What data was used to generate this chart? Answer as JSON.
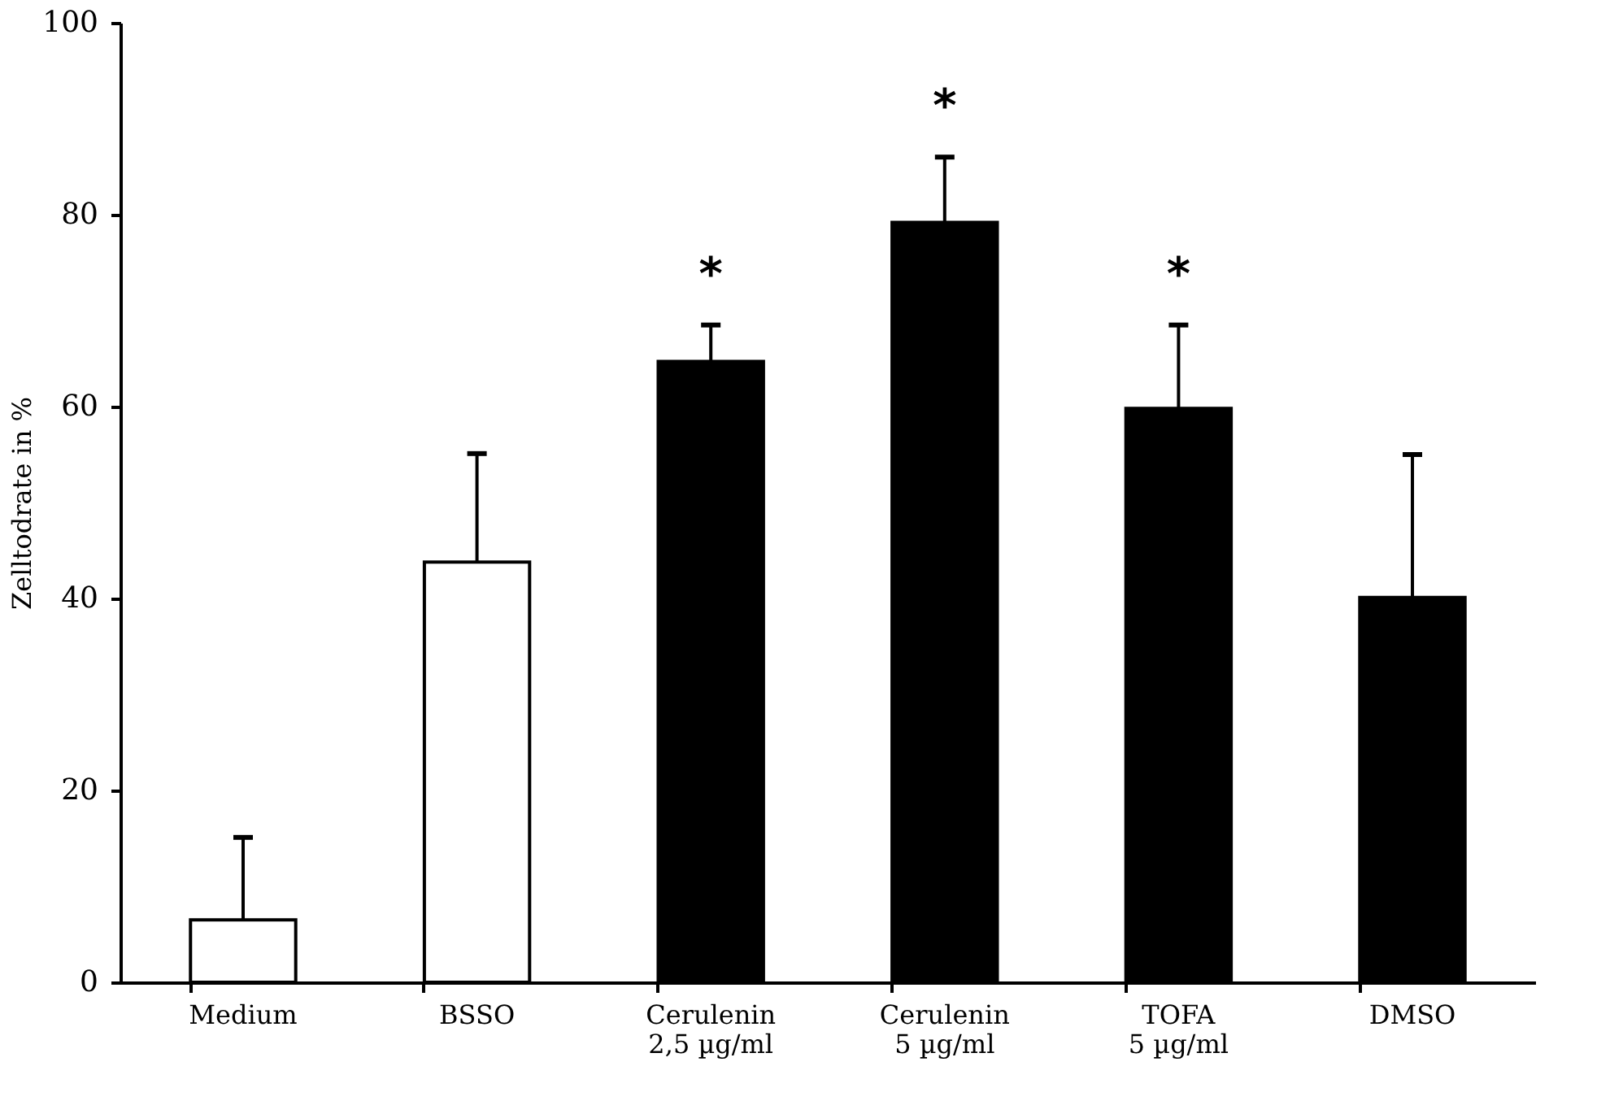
{
  "chart_data": {
    "type": "bar",
    "ylabel": "Zelltodrate in %",
    "categories": [
      "Medium",
      "BSSO",
      "Cerulenin\n2,5 µg/ml",
      "Cerulenin\n5 µg/ml",
      "TOFA\n5 µg/ml",
      "DMSO"
    ],
    "values": [
      6.5,
      43.8,
      64.7,
      79.2,
      59.8,
      40.1
    ],
    "colors": [
      "#ffffff",
      "#ffffff",
      "#000000",
      "#000000",
      "#000000",
      "#000000"
    ],
    "errors": [
      [
        6.5,
        15.1
      ],
      [
        43.8,
        55.1
      ],
      [
        64.7,
        68.5
      ],
      [
        79.2,
        86.0
      ],
      [
        59.8,
        68.5
      ],
      [
        40.1,
        55.0
      ]
    ],
    "ylim": [
      0,
      100
    ],
    "yticks": [
      0,
      20,
      40,
      60,
      80,
      100
    ],
    "grid": false,
    "annotations": [
      {
        "text": "*",
        "x": "Cerulenin\n2,5 µg/ml",
        "y": 64.7
      },
      {
        "text": "*",
        "x": "Cerulenin\n5 µg/ml",
        "y": 79.2
      },
      {
        "text": "*",
        "x": "TOFA\n5 µg/ml",
        "y": 59.8
      }
    ]
  }
}
